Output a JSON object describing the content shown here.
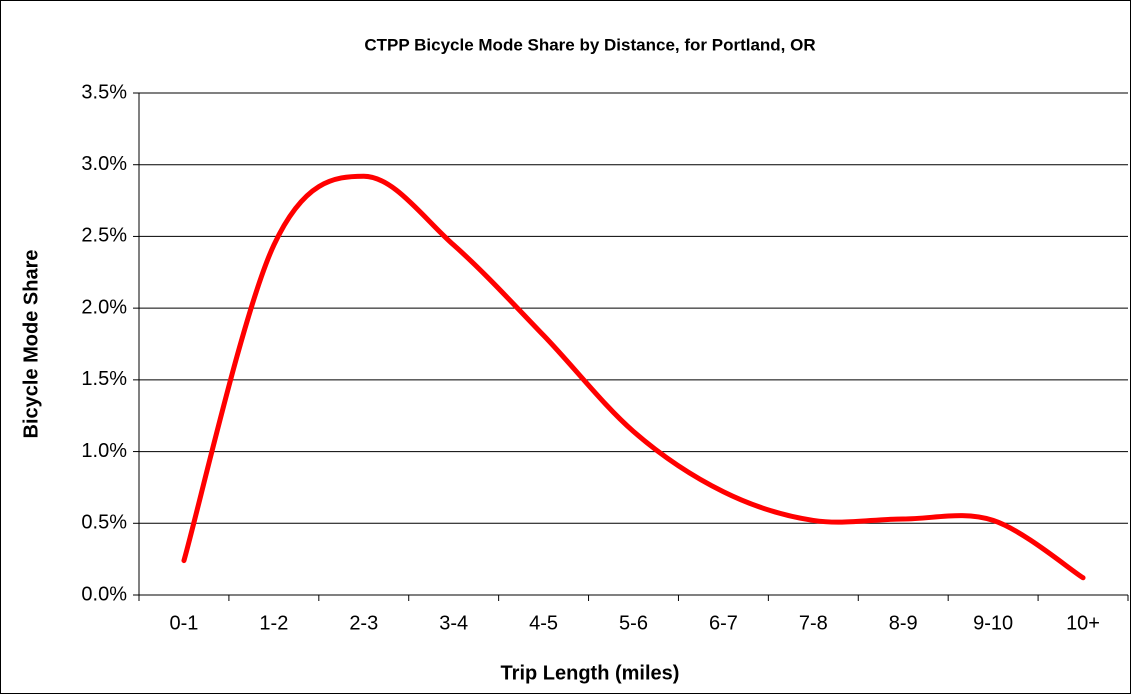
{
  "chart_data": {
    "type": "line",
    "title": "CTPP Bicycle Mode Share by Distance, for Portland, OR",
    "x_label": "Trip Length (miles)",
    "y_label": "Bicycle Mode Share",
    "categories": [
      "0-1",
      "1-2",
      "2-3",
      "3-4",
      "4-5",
      "5-6",
      "6-7",
      "7-8",
      "8-9",
      "9-10",
      "10+"
    ],
    "series": [
      {
        "name": "Bicycle Mode Share",
        "color": "#ff0000",
        "values": [
          0.24,
          2.44,
          2.92,
          2.44,
          1.81,
          1.14,
          0.72,
          0.52,
          0.53,
          0.52,
          0.12
        ]
      }
    ],
    "smooth": true,
    "ylim": [
      0,
      3.5
    ],
    "yticks": [
      {
        "value": 0,
        "label": "0.0%"
      },
      {
        "value": 0.5,
        "label": "0.5%"
      },
      {
        "value": 1,
        "label": "1.0%"
      },
      {
        "value": 1.5,
        "label": "1.5%"
      },
      {
        "value": 2,
        "label": "2.0%"
      },
      {
        "value": 2.5,
        "label": "2.5%"
      },
      {
        "value": 3,
        "label": "3.0%"
      },
      {
        "value": 3.5,
        "label": "3.5%"
      }
    ],
    "grid": true
  }
}
